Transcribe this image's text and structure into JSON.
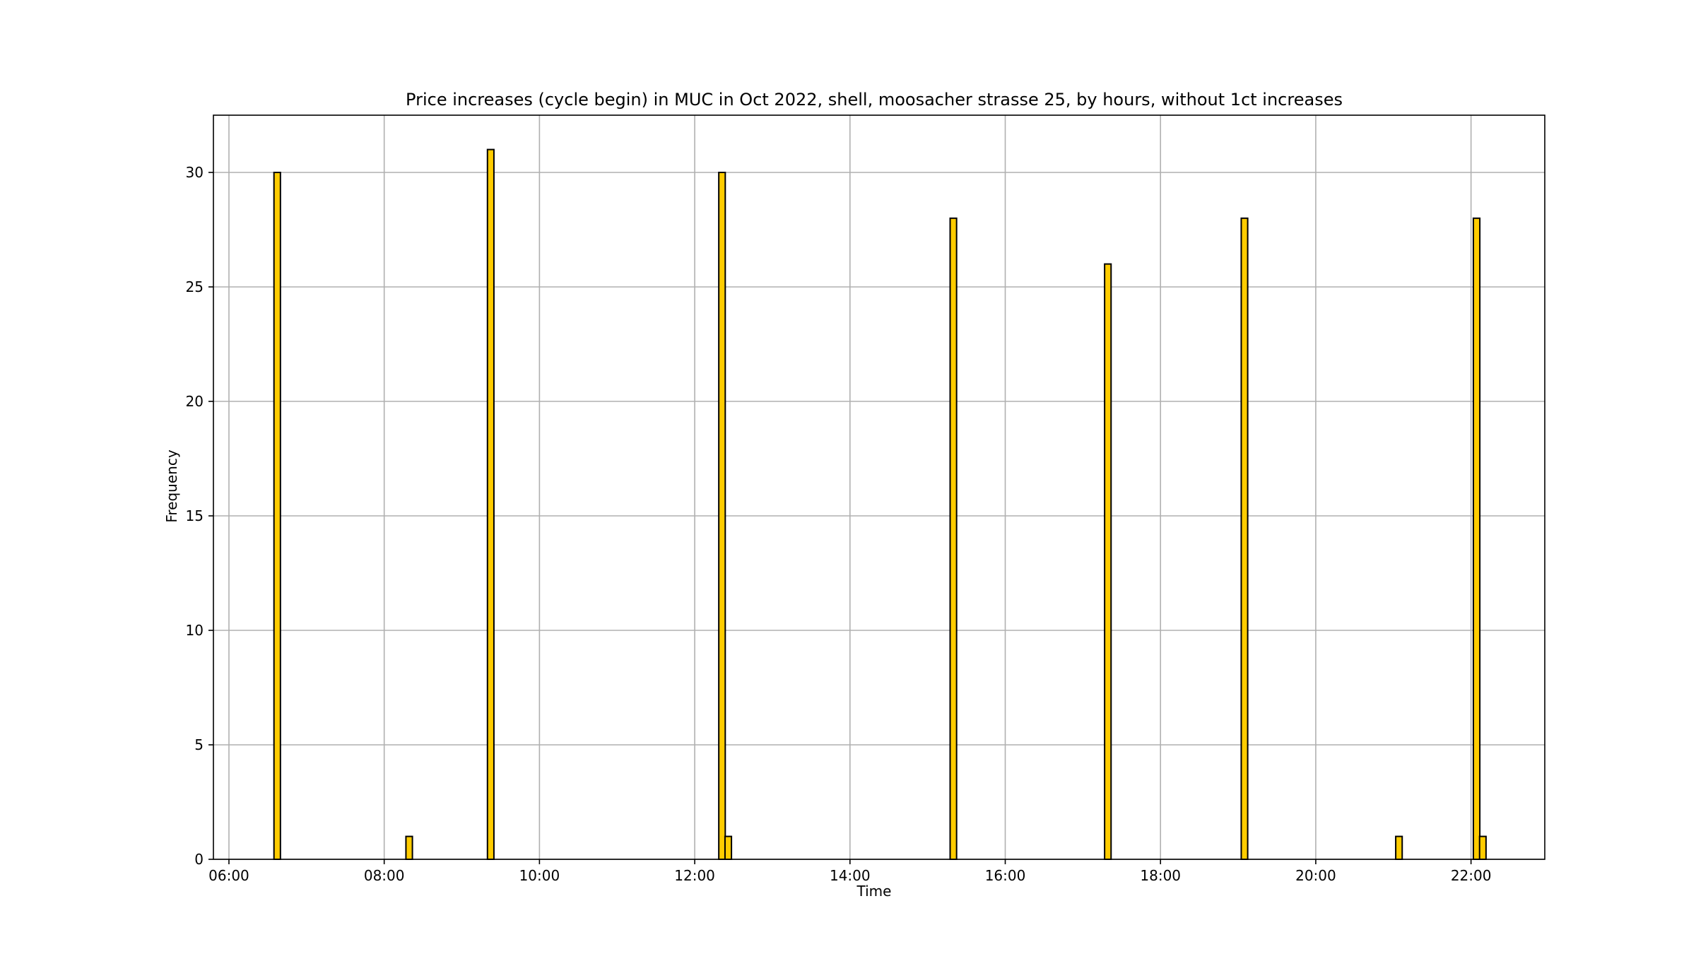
{
  "chart_data": {
    "type": "bar",
    "title": "Price increases (cycle begin) in MUC in Oct 2022, shell, moosacher strasse 25, by hours, without 1ct increases",
    "xlabel": "Time",
    "ylabel": "Frequency",
    "x_unit": "hours",
    "xlim": [
      5.8,
      22.95
    ],
    "ylim": [
      0,
      32.5
    ],
    "x_ticks": [
      {
        "value": 6,
        "label": "06:00"
      },
      {
        "value": 8,
        "label": "08:00"
      },
      {
        "value": 10,
        "label": "10:00"
      },
      {
        "value": 12,
        "label": "12:00"
      },
      {
        "value": 14,
        "label": "14:00"
      },
      {
        "value": 16,
        "label": "16:00"
      },
      {
        "value": 18,
        "label": "18:00"
      },
      {
        "value": 20,
        "label": "20:00"
      },
      {
        "value": 22,
        "label": "22:00"
      }
    ],
    "y_ticks": [
      {
        "value": 0,
        "label": "0"
      },
      {
        "value": 5,
        "label": "5"
      },
      {
        "value": 10,
        "label": "10"
      },
      {
        "value": 15,
        "label": "15"
      },
      {
        "value": 20,
        "label": "20"
      },
      {
        "value": 25,
        "label": "25"
      },
      {
        "value": 30,
        "label": "30"
      }
    ],
    "bin_width_hours": 0.0833,
    "bars": [
      {
        "x_start": 6.58,
        "value": 30
      },
      {
        "x_start": 8.28,
        "value": 1
      },
      {
        "x_start": 9.33,
        "value": 31
      },
      {
        "x_start": 12.31,
        "value": 30
      },
      {
        "x_start": 12.39,
        "value": 1
      },
      {
        "x_start": 15.29,
        "value": 28
      },
      {
        "x_start": 17.28,
        "value": 26
      },
      {
        "x_start": 19.04,
        "value": 28
      },
      {
        "x_start": 21.03,
        "value": 1
      },
      {
        "x_start": 22.03,
        "value": 28
      },
      {
        "x_start": 22.11,
        "value": 1
      }
    ],
    "bar_color": "#ffcc00",
    "bar_edge_color": "#000000",
    "grid": true,
    "legend": "none"
  }
}
